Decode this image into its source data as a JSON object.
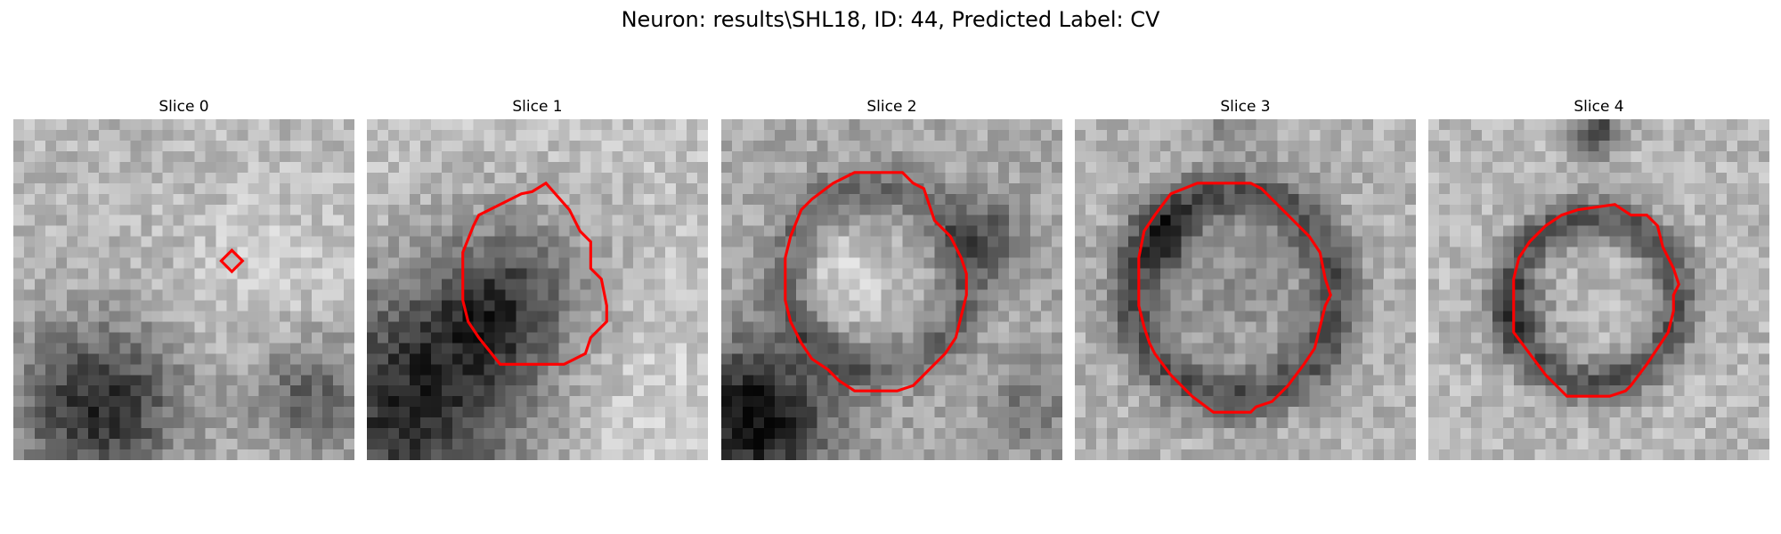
{
  "figure": {
    "title": "Neuron: results\\SHL18, ID: 44, Predicted Label: CV",
    "roi_color": "#ff0000",
    "colormap": "gray"
  },
  "panels": [
    {
      "title": "Slice 0"
    },
    {
      "title": "Slice 1"
    },
    {
      "title": "Slice 2"
    },
    {
      "title": "Slice 3"
    },
    {
      "title": "Slice 4"
    }
  ]
}
